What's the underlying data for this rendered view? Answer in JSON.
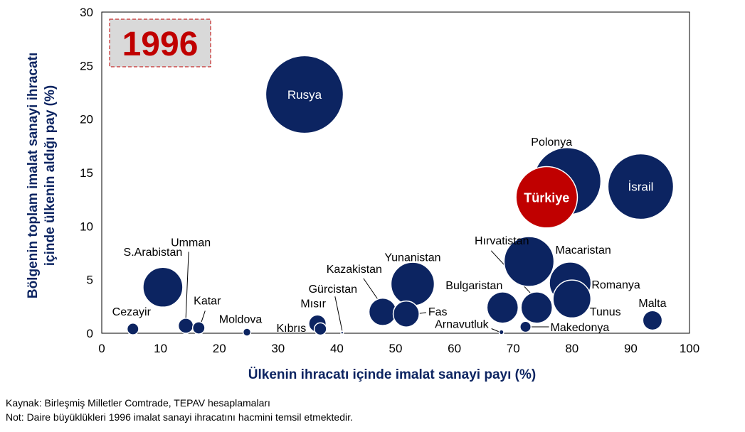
{
  "chart_data": {
    "type": "scatter",
    "subtype": "bubble",
    "title": "1996",
    "xlabel": "Ülkenin ihracatı içinde imalat sanayi payı (%)",
    "ylabel_lines": [
      "Bölgenin toplam imalat sanayi ihracatı",
      "içinde ülkenin aldığı pay (%)"
    ],
    "xlim": [
      0,
      100
    ],
    "ylim": [
      0,
      30
    ],
    "xticks": [
      "0",
      "10",
      "20",
      "30",
      "40",
      "50",
      "60",
      "70",
      "80",
      "90",
      "100"
    ],
    "yticks": [
      "0",
      "5",
      "10",
      "15",
      "20",
      "25",
      "30"
    ],
    "grid": false,
    "colors": {
      "bubble": "#0c2461",
      "highlight": "#c00000",
      "title_text": "#c00000",
      "axis_label": "#0c2461"
    },
    "points": [
      {
        "name": "Rusya",
        "x": 34.5,
        "y": 22.3,
        "size": 8.0,
        "inside": true
      },
      {
        "name": "Polonya",
        "x": 79.2,
        "y": 14.2,
        "size": 6.0
      },
      {
        "name": "Türkiye",
        "x": 75.7,
        "y": 12.7,
        "size": 5.0,
        "inside": true,
        "highlight": true
      },
      {
        "name": "İsrail",
        "x": 91.7,
        "y": 13.7,
        "size": 5.7,
        "inside": true
      },
      {
        "name": "Macaristan",
        "x": 72.7,
        "y": 6.7,
        "size": 3.3
      },
      {
        "name": "Romanya",
        "x": 79.7,
        "y": 4.7,
        "size": 2.3
      },
      {
        "name": "Tunus",
        "x": 80.0,
        "y": 3.2,
        "size": 1.9
      },
      {
        "name": "Hırvatistan",
        "x": 74.0,
        "y": 2.4,
        "size": 1.3
      },
      {
        "name": "Bulgaristan",
        "x": 68.2,
        "y": 2.4,
        "size": 1.3
      },
      {
        "name": "Malta",
        "x": 93.7,
        "y": 1.2,
        "size": 0.5
      },
      {
        "name": "Makedonya",
        "x": 72.1,
        "y": 0.6,
        "size": 0.16
      },
      {
        "name": "Arnavutluk",
        "x": 68.0,
        "y": 0.1,
        "size": 0.03
      },
      {
        "name": "Yunanistan",
        "x": 52.9,
        "y": 4.6,
        "size": 2.5
      },
      {
        "name": "Kazakistan",
        "x": 47.8,
        "y": 2.0,
        "size": 1.0
      },
      {
        "name": "Fas",
        "x": 51.8,
        "y": 1.8,
        "size": 0.9
      },
      {
        "name": "Gürcistan",
        "x": 40.9,
        "y": 0.05,
        "size": 0.01
      },
      {
        "name": "Mısır",
        "x": 36.7,
        "y": 0.9,
        "size": 0.4
      },
      {
        "name": "Kıbrıs",
        "x": 37.2,
        "y": 0.4,
        "size": 0.2
      },
      {
        "name": "Moldova",
        "x": 24.7,
        "y": 0.1,
        "size": 0.08
      },
      {
        "name": "Katar",
        "x": 16.5,
        "y": 0.5,
        "size": 0.2
      },
      {
        "name": "Umman",
        "x": 14.3,
        "y": 0.7,
        "size": 0.3
      },
      {
        "name": "S.Arabistan",
        "x": 10.4,
        "y": 4.3,
        "size": 2.1
      },
      {
        "name": "Cezayir",
        "x": 5.3,
        "y": 0.4,
        "size": 0.18
      }
    ]
  },
  "notes": {
    "source": "Kaynak: Birleşmiş Milletler Comtrade, TEPAV hesaplamaları",
    "note": "Not: Daire büyüklükleri 1996 imalat sanayi ihracatını hacmini temsil etmektedir."
  }
}
